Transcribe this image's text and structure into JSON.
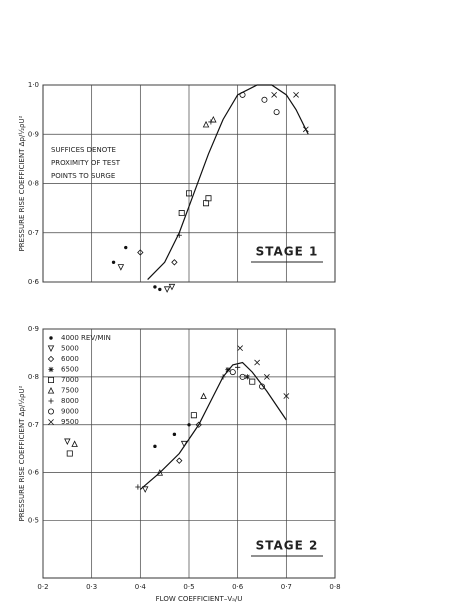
{
  "chart_data": [
    {
      "type": "scatter",
      "title": "STAGE 1",
      "y_label": "PRESSURE RISE COEFFICIENT  Δp/½ρU²",
      "annotation": [
        "SUFFICES DENOTE",
        "PROXIMITY OF TEST",
        "POINTS TO SURGE"
      ],
      "xlim": [
        0.2,
        0.8
      ],
      "xticks": [
        0.3,
        0.4,
        0.5,
        0.6,
        0.7
      ],
      "ylim": [
        0.6,
        1.0
      ],
      "yticks": [
        {
          "value": 0.6,
          "label": "0·6"
        },
        {
          "value": 0.7,
          "label": "0·7"
        },
        {
          "value": 0.8,
          "label": "0·8"
        },
        {
          "value": 0.9,
          "label": "0·9"
        },
        {
          "value": 1.0,
          "label": "1·0"
        }
      ],
      "grid": true,
      "series": [
        {
          "marker": "dot",
          "x": [
            0.345,
            0.37,
            0.43,
            0.44
          ],
          "values": [
            0.64,
            0.67,
            0.59,
            0.585
          ]
        },
        {
          "marker": "triangle-down",
          "x": [
            0.455,
            0.465,
            0.36
          ],
          "values": [
            0.585,
            0.59,
            0.63
          ]
        },
        {
          "marker": "diamond",
          "x": [
            0.4,
            0.47
          ],
          "values": [
            0.66,
            0.64
          ]
        },
        {
          "marker": "square",
          "x": [
            0.485,
            0.5,
            0.535,
            0.54
          ],
          "values": [
            0.74,
            0.78,
            0.76,
            0.77
          ]
        },
        {
          "marker": "triangle-up",
          "x": [
            0.535,
            0.55
          ],
          "values": [
            0.92,
            0.93
          ]
        },
        {
          "marker": "plus",
          "x": [
            0.48,
            0.545
          ],
          "values": [
            0.695,
            0.925
          ]
        },
        {
          "marker": "circle",
          "x": [
            0.61,
            0.655,
            0.68
          ],
          "values": [
            0.98,
            0.97,
            0.945
          ]
        },
        {
          "marker": "cross",
          "x": [
            0.675,
            0.72,
            0.74
          ],
          "values": [
            0.98,
            0.98,
            0.91
          ]
        }
      ],
      "curve": {
        "x": [
          0.415,
          0.45,
          0.48,
          0.51,
          0.54,
          0.57,
          0.6,
          0.64,
          0.67,
          0.7,
          0.72,
          0.745
        ],
        "values": [
          0.605,
          0.64,
          0.7,
          0.78,
          0.86,
          0.93,
          0.98,
          1.0,
          1.0,
          0.98,
          0.95,
          0.9
        ]
      }
    },
    {
      "type": "scatter",
      "title": "STAGE 2",
      "y_label": "PRESSURE RISE COEFFICIENT  Δp/½ρU²",
      "x_label": "FLOW COEFFICIENT–Vₐ/U",
      "xlim": [
        0.2,
        0.8
      ],
      "xticks": [
        {
          "value": 0.2,
          "label": "0·2"
        },
        {
          "value": 0.3,
          "label": "0·3"
        },
        {
          "value": 0.4,
          "label": "0·4"
        },
        {
          "value": 0.5,
          "label": "0·5"
        },
        {
          "value": 0.6,
          "label": "0·6"
        },
        {
          "value": 0.7,
          "label": "0·7"
        },
        {
          "value": 0.8,
          "label": "0·8"
        }
      ],
      "ylim": [
        0.38,
        0.9
      ],
      "yticks": [
        {
          "value": 0.5,
          "label": "0·5"
        },
        {
          "value": 0.6,
          "label": "0·6"
        },
        {
          "value": 0.7,
          "label": "0·7"
        },
        {
          "value": 0.8,
          "label": "0·8"
        },
        {
          "value": 0.9,
          "label": "0·9"
        }
      ],
      "grid": true,
      "series": [
        {
          "name": "4000 REV/MIN",
          "marker": "dot",
          "x": [
            0.43,
            0.47,
            0.5
          ],
          "values": [
            0.655,
            0.68,
            0.7
          ]
        },
        {
          "name": "5000",
          "marker": "triangle-down",
          "x": [
            0.25,
            0.41,
            0.49
          ],
          "values": [
            0.665,
            0.565,
            0.66
          ]
        },
        {
          "name": "6000",
          "marker": "diamond",
          "x": [
            0.48,
            0.52
          ],
          "values": [
            0.625,
            0.7
          ]
        },
        {
          "name": "6500",
          "marker": "asterisk",
          "x": [
            0.58,
            0.62
          ],
          "values": [
            0.815,
            0.8
          ]
        },
        {
          "name": "7000",
          "marker": "square",
          "x": [
            0.255,
            0.51,
            0.63
          ],
          "values": [
            0.64,
            0.72,
            0.79
          ]
        },
        {
          "name": "7500",
          "marker": "triangle-up",
          "x": [
            0.265,
            0.44,
            0.53
          ],
          "values": [
            0.66,
            0.6,
            0.76
          ]
        },
        {
          "name": "8000",
          "marker": "plus",
          "x": [
            0.395,
            0.57,
            0.6
          ],
          "values": [
            0.57,
            0.8,
            0.82
          ]
        },
        {
          "name": "9000",
          "marker": "circle",
          "x": [
            0.59,
            0.61,
            0.65
          ],
          "values": [
            0.81,
            0.8,
            0.78
          ]
        },
        {
          "name": "9500",
          "marker": "cross",
          "x": [
            0.605,
            0.64,
            0.66,
            0.7
          ],
          "values": [
            0.86,
            0.83,
            0.8,
            0.76
          ]
        }
      ],
      "curve": {
        "x": [
          0.4,
          0.44,
          0.48,
          0.52,
          0.55,
          0.57,
          0.59,
          0.61,
          0.63,
          0.66,
          0.7
        ],
        "values": [
          0.565,
          0.6,
          0.64,
          0.7,
          0.76,
          0.8,
          0.825,
          0.83,
          0.81,
          0.77,
          0.71
        ]
      }
    }
  ]
}
